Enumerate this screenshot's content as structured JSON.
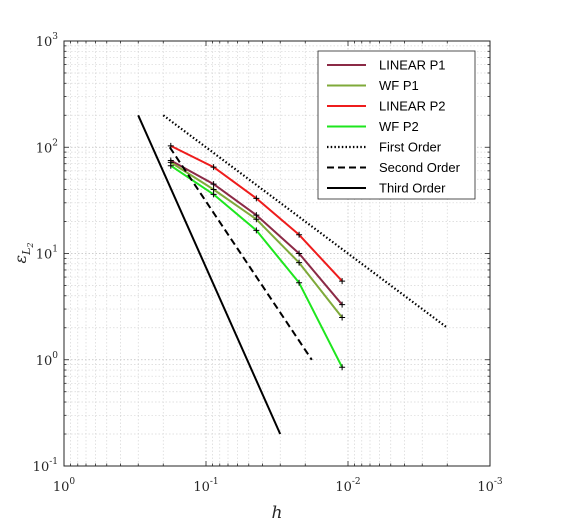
{
  "chart_data": {
    "type": "line",
    "xlabel": "h",
    "ylabel_base": "ε",
    "ylabel_sub": "L",
    "ylabel_subsub": "2",
    "x_scale": "log",
    "y_scale": "log",
    "x_reversed": true,
    "xlim": [
      0.001,
      1
    ],
    "ylim": [
      0.1,
      1000
    ],
    "grid": "on (major and minor, dotted)",
    "legend_position": "top-right",
    "x_ticks": [
      {
        "value": 1,
        "base": "10",
        "exp": "0"
      },
      {
        "value": 0.1,
        "base": "10",
        "exp": "-1"
      },
      {
        "value": 0.01,
        "base": "10",
        "exp": "-2"
      },
      {
        "value": 0.001,
        "base": "10",
        "exp": "-3"
      }
    ],
    "y_ticks": [
      {
        "value": 0.1,
        "base": "10",
        "exp": "-1"
      },
      {
        "value": 1,
        "base": "10",
        "exp": "0"
      },
      {
        "value": 10,
        "base": "10",
        "exp": "1"
      },
      {
        "value": 100,
        "base": "10",
        "exp": "2"
      },
      {
        "value": 1000,
        "base": "10",
        "exp": "3"
      }
    ],
    "series": [
      {
        "name": "LINEAR P1",
        "color": "#8b2a46",
        "dash": "solid",
        "markers": true,
        "x": [
          0.177,
          0.0884,
          0.0442,
          0.0221,
          0.011
        ],
        "y": [
          75,
          45,
          23,
          10,
          3.3
        ]
      },
      {
        "name": "WF P1",
        "color": "#7faa3a",
        "dash": "solid",
        "markers": true,
        "x": [
          0.177,
          0.0884,
          0.0442,
          0.0221,
          0.011
        ],
        "y": [
          72,
          40,
          21,
          8.2,
          2.5
        ]
      },
      {
        "name": "LINEAR P2",
        "color": "#ee1c1c",
        "dash": "solid",
        "markers": true,
        "x": [
          0.177,
          0.0884,
          0.0442,
          0.0221,
          0.011
        ],
        "y": [
          103,
          65,
          33,
          15,
          5.5
        ]
      },
      {
        "name": "WF P2",
        "color": "#1ee61e",
        "dash": "solid",
        "markers": true,
        "x": [
          0.177,
          0.0884,
          0.0442,
          0.0221,
          0.011
        ],
        "y": [
          67,
          36,
          16.5,
          5.3,
          0.85
        ]
      },
      {
        "name": "First Order",
        "color": "#000000",
        "dash": "dotted",
        "markers": false,
        "x": [
          0.2,
          0.002
        ],
        "y": [
          200,
          2
        ]
      },
      {
        "name": "Second Order",
        "color": "#000000",
        "dash": "dashed",
        "markers": false,
        "x": [
          0.18,
          0.018
        ],
        "y": [
          100,
          1
        ]
      },
      {
        "name": "Third Order",
        "color": "#000000",
        "dash": "solid",
        "markers": false,
        "x": [
          0.3,
          0.03
        ],
        "y": [
          200,
          0.2
        ]
      }
    ]
  }
}
